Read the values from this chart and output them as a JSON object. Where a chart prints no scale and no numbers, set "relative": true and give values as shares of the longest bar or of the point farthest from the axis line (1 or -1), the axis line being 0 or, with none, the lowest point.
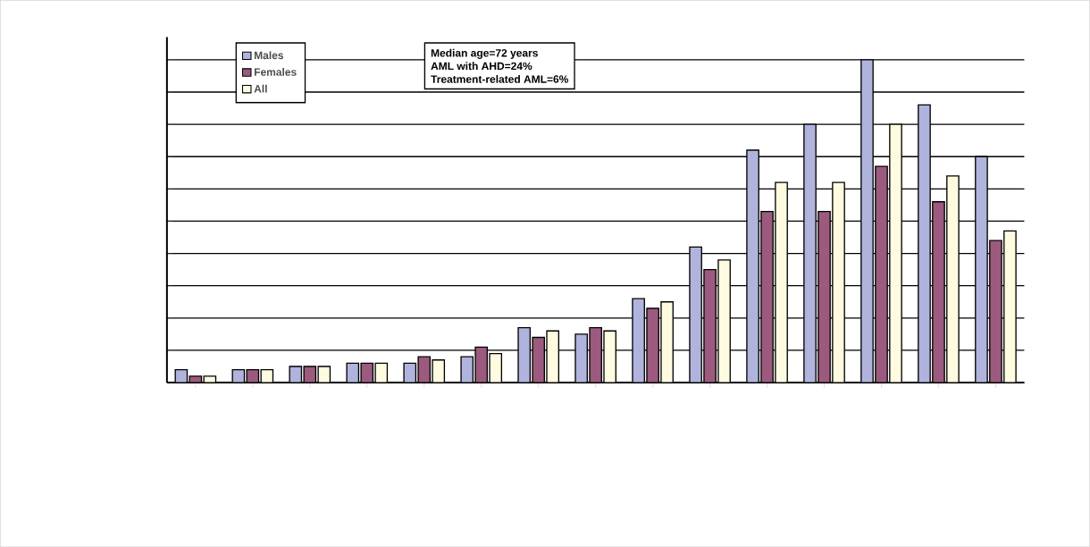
{
  "chart_data": {
    "type": "bar",
    "relative": true,
    "grid": "y",
    "legend": "top left",
    "categories": [
      null,
      null,
      null,
      null,
      null,
      null,
      null,
      null,
      null,
      null,
      null,
      null,
      null,
      null,
      null
    ],
    "series": [
      {
        "name": "Males",
        "color": "#b0b4dc",
        "values": [
          0.04,
          0.04,
          0.05,
          0.06,
          0.06,
          0.08,
          0.17,
          0.15,
          0.26,
          0.42,
          0.72,
          0.8,
          1,
          0.86,
          0.7
        ]
      },
      {
        "name": "Females",
        "color": "#9c5a7e",
        "values": [
          0.02,
          0.04,
          0.05,
          0.06,
          0.08,
          0.11,
          0.14,
          0.17,
          0.23,
          0.35,
          0.53,
          0.53,
          0.67,
          0.56,
          0.44
        ]
      },
      {
        "name": "All",
        "color": "#fffbe0",
        "values": [
          0.02,
          0.04,
          0.05,
          0.06,
          0.07,
          0.09,
          0.16,
          0.16,
          0.25,
          0.38,
          0.62,
          0.62,
          0.8,
          0.64,
          0.47
        ]
      }
    ],
    "annotations": [
      "Median age=72 years",
      "AML with AHD=24%",
      "Treatment-related AML=6%"
    ]
  }
}
